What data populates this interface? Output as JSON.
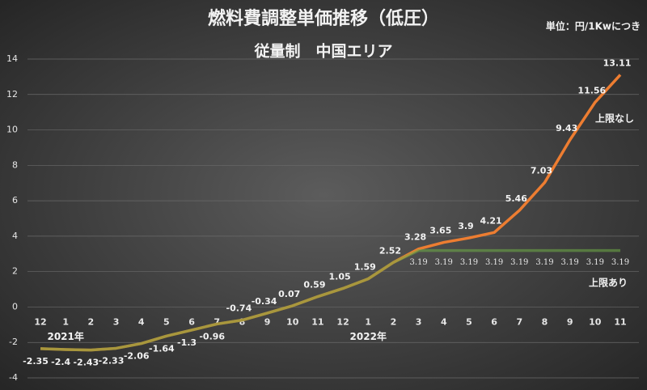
{
  "chart_data": {
    "type": "line",
    "title": "燃料費調整単価推移（低圧）",
    "subtitle": "従量制　中国エリア",
    "unit_label": "単位：円/1Kwにつき",
    "categories": [
      "12",
      "1",
      "2",
      "3",
      "4",
      "5",
      "6",
      "7",
      "8",
      "9",
      "10",
      "11",
      "12",
      "1",
      "2",
      "3",
      "4",
      "5",
      "6",
      "7",
      "8",
      "9",
      "10",
      "11"
    ],
    "year_labels": [
      {
        "index": 1,
        "label": "2021年"
      },
      {
        "index": 13,
        "label": "2022年"
      }
    ],
    "series": [
      {
        "name": "上限なし",
        "color": "#ed7d31",
        "values": [
          -2.35,
          -2.4,
          -2.43,
          -2.33,
          -2.06,
          -1.64,
          -1.3,
          -0.96,
          -0.74,
          -0.34,
          0.07,
          0.59,
          1.05,
          1.59,
          2.52,
          3.28,
          3.65,
          3.9,
          4.21,
          5.46,
          7.03,
          9.43,
          11.56,
          13.11
        ]
      },
      {
        "name": "上限あり",
        "color": "#70ad47",
        "values": [
          -2.35,
          -2.4,
          -2.43,
          -2.33,
          -2.06,
          -1.64,
          -1.3,
          -0.96,
          -0.74,
          -0.34,
          0.07,
          0.59,
          1.05,
          1.59,
          2.52,
          3.19,
          3.19,
          3.19,
          3.19,
          3.19,
          3.19,
          3.19,
          3.19,
          3.19
        ]
      }
    ],
    "ylim": [
      -4,
      14
    ],
    "yticks": [
      -4,
      -2,
      0,
      2,
      4,
      6,
      8,
      10,
      12,
      14
    ],
    "grid": true
  }
}
